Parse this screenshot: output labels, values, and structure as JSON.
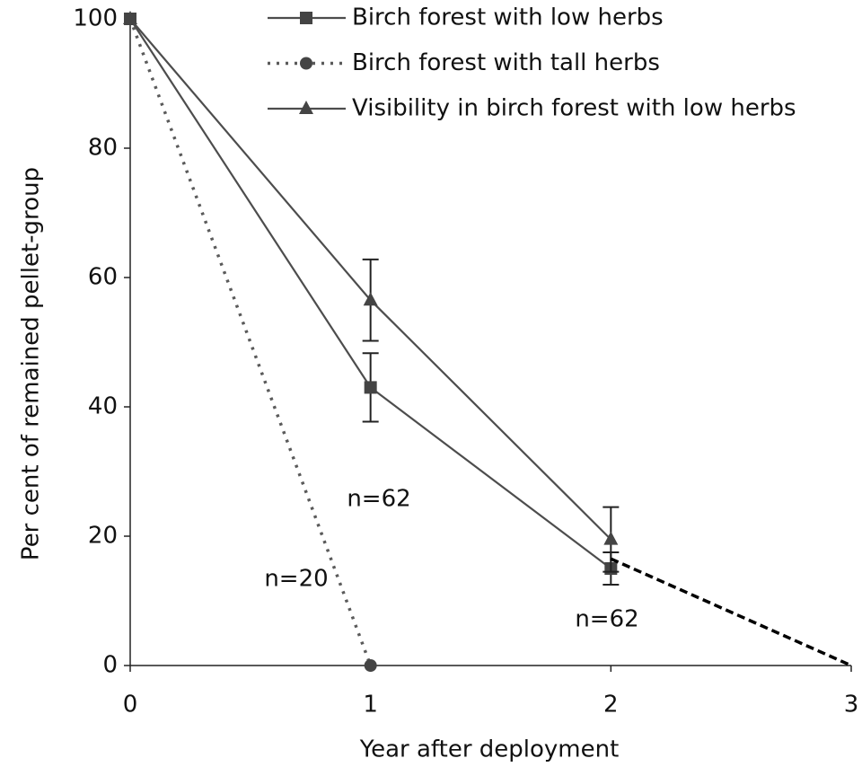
{
  "chart_data": {
    "type": "line",
    "x_label": "Year after deployment",
    "y_label": "Per cent of remained pellet-group",
    "x": [
      0,
      1,
      2,
      3
    ],
    "xlim": [
      0,
      3
    ],
    "xticks": [
      0,
      1,
      2,
      3
    ],
    "ylim": [
      0,
      100
    ],
    "yticks": [
      0,
      20,
      40,
      60,
      80,
      100
    ],
    "series": [
      {
        "name": "Birch forest with low herbs",
        "color": "#4d4d4d",
        "marker": "square",
        "line_style": "solid",
        "values": [
          100,
          43,
          15,
          null
        ],
        "errors": [
          null,
          5.3,
          2.5,
          null
        ]
      },
      {
        "name": "Birch forest with tall herbs",
        "color": "#5a5a5a",
        "marker": "circle",
        "line_style": "dotted",
        "values": [
          100,
          0,
          null,
          null
        ]
      },
      {
        "name": "Visibility in birch forest with low herbs",
        "color": "#4d4d4d",
        "marker": "triangle",
        "line_style": "solid",
        "values": [
          100,
          56.5,
          19.5,
          null
        ],
        "errors": [
          null,
          6.3,
          5,
          null
        ]
      },
      {
        "color": "#000000",
        "marker": "none",
        "line_style": "dashed",
        "values": [
          null,
          null,
          16.5,
          0
        ]
      }
    ],
    "annotations": [
      "n=62",
      "n=20",
      "n=62"
    ]
  }
}
